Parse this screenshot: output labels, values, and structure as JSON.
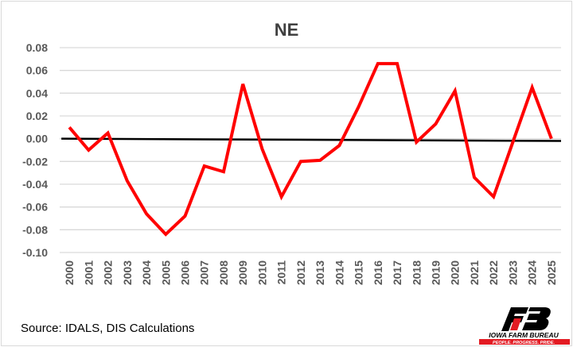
{
  "chart_data": {
    "type": "line",
    "title": "NE",
    "xlabel": "",
    "ylabel": "",
    "categories": [
      "2000",
      "2001",
      "2002",
      "2003",
      "2004",
      "2005",
      "2006",
      "2007",
      "2008",
      "2009",
      "2010",
      "2011",
      "2012",
      "2013",
      "2014",
      "2015",
      "2016",
      "2017",
      "2018",
      "2019",
      "2020",
      "2021",
      "2022",
      "2023",
      "2024",
      "2025"
    ],
    "series": [
      {
        "name": "NE",
        "color": "#ff0000",
        "values": [
          0.01,
          -0.01,
          0.005,
          -0.037,
          -0.066,
          -0.084,
          -0.068,
          -0.024,
          -0.029,
          0.048,
          -0.009,
          -0.051,
          -0.02,
          -0.019,
          -0.006,
          0.028,
          0.066,
          0.066,
          -0.003,
          0.013,
          0.042,
          -0.034,
          -0.051,
          -0.003,
          0.045,
          0.0
        ]
      }
    ],
    "reference_line": {
      "color": "#000000",
      "start": 0.0,
      "end": -0.002
    },
    "ylim": [
      -0.1,
      0.08
    ],
    "yticks": [
      "0.08",
      "0.06",
      "0.04",
      "0.02",
      "0.00",
      "-0.02",
      "-0.04",
      "-0.06",
      "-0.08",
      "-0.10"
    ],
    "grid": true,
    "legend": "none"
  },
  "source": "Source: IDALS, DIS Calculations",
  "logo": {
    "name": "IOWA FARM BUREAU",
    "tagline": "PEOPLE. PROGRESS. PRIDE."
  }
}
